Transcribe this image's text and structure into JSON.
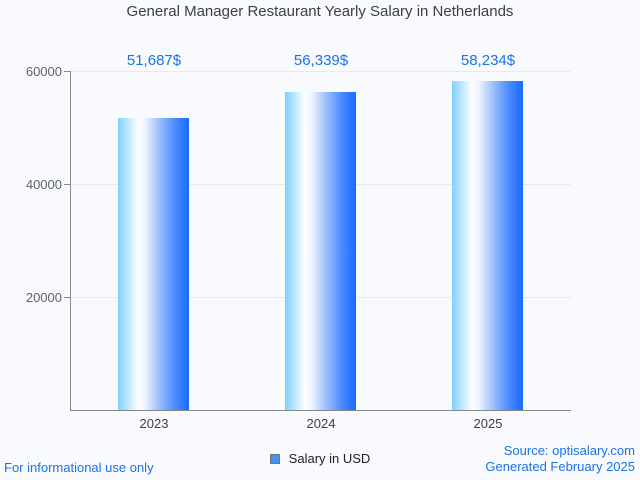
{
  "title": "General Manager Restaurant Yearly Salary in Netherlands",
  "chart_data": {
    "type": "bar",
    "title": "General Manager Restaurant Yearly Salary in Netherlands",
    "categories": [
      "2023",
      "2024",
      "2025"
    ],
    "series": [
      {
        "name": "Salary in USD",
        "values": [
          51687,
          56339,
          58234
        ]
      }
    ],
    "value_labels": [
      "51,687$",
      "56,339$",
      "58,234$"
    ],
    "xlabel": "",
    "ylabel": "",
    "ylim": [
      0,
      60000
    ],
    "yticks": [
      20000,
      40000,
      60000
    ],
    "ytick_labels": [
      "20000",
      "40000",
      "60000"
    ],
    "grid": true,
    "legend_position": "bottom-center"
  },
  "legend": {
    "label": "Salary in USD"
  },
  "footer": {
    "left": "For informational use only",
    "source": "Source: optisalary.com",
    "generated": "Generated February 2025"
  },
  "colors": {
    "value_label_blue": "#1a73e8",
    "footer_blue": "#1a73e8",
    "title_text": "#3c4043",
    "tick_text": "#5f6368",
    "axis": "#85888c",
    "gridline": "#e8eaed",
    "bar_gradient_left": "#7fd0fd",
    "bar_gradient_mid": "#ffffff",
    "bar_gradient_right": "#186aff",
    "legend_marker_fill": "#4d90f0",
    "legend_marker_border": "#707579",
    "background": "#f9fafd"
  }
}
